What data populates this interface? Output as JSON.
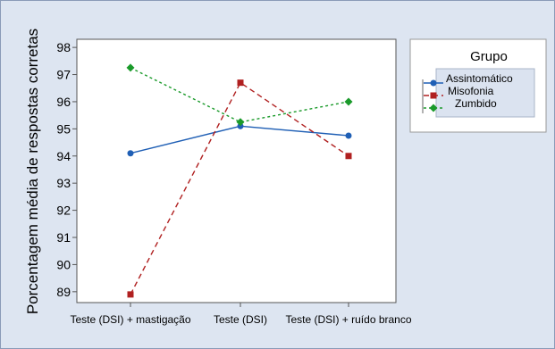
{
  "chart_data": {
    "type": "line",
    "ylabel": "Porcentagem média de respostas corretas",
    "xlabel": "",
    "categories": [
      "Teste (DSI) + mastigação",
      "Teste (DSI)",
      "Teste (DSI) + ruído branco"
    ],
    "y_ticks": [
      89,
      90,
      91,
      92,
      93,
      94,
      95,
      96,
      97,
      98
    ],
    "ylim": [
      88.6,
      98.3
    ],
    "grid": false,
    "legend": {
      "title": "Grupo",
      "placement": "right"
    },
    "series": [
      {
        "name": "Assintomático",
        "values": [
          94.1,
          95.1,
          94.75
        ],
        "color": "#1f5fb5",
        "marker": "circle",
        "dash": "solid"
      },
      {
        "name": "Misofonia",
        "values": [
          88.9,
          96.7,
          94.0
        ],
        "color": "#b02020",
        "marker": "square",
        "dash": "dashed"
      },
      {
        "name": "Zumbido",
        "values": [
          97.25,
          95.25,
          96.0
        ],
        "color": "#1a9a2a",
        "marker": "diamond",
        "dash": "dotted"
      }
    ],
    "colors": {
      "background": "#dde5f1",
      "plot_bg": "#ffffff",
      "legend_key_bg": "#dbe3f0"
    }
  }
}
